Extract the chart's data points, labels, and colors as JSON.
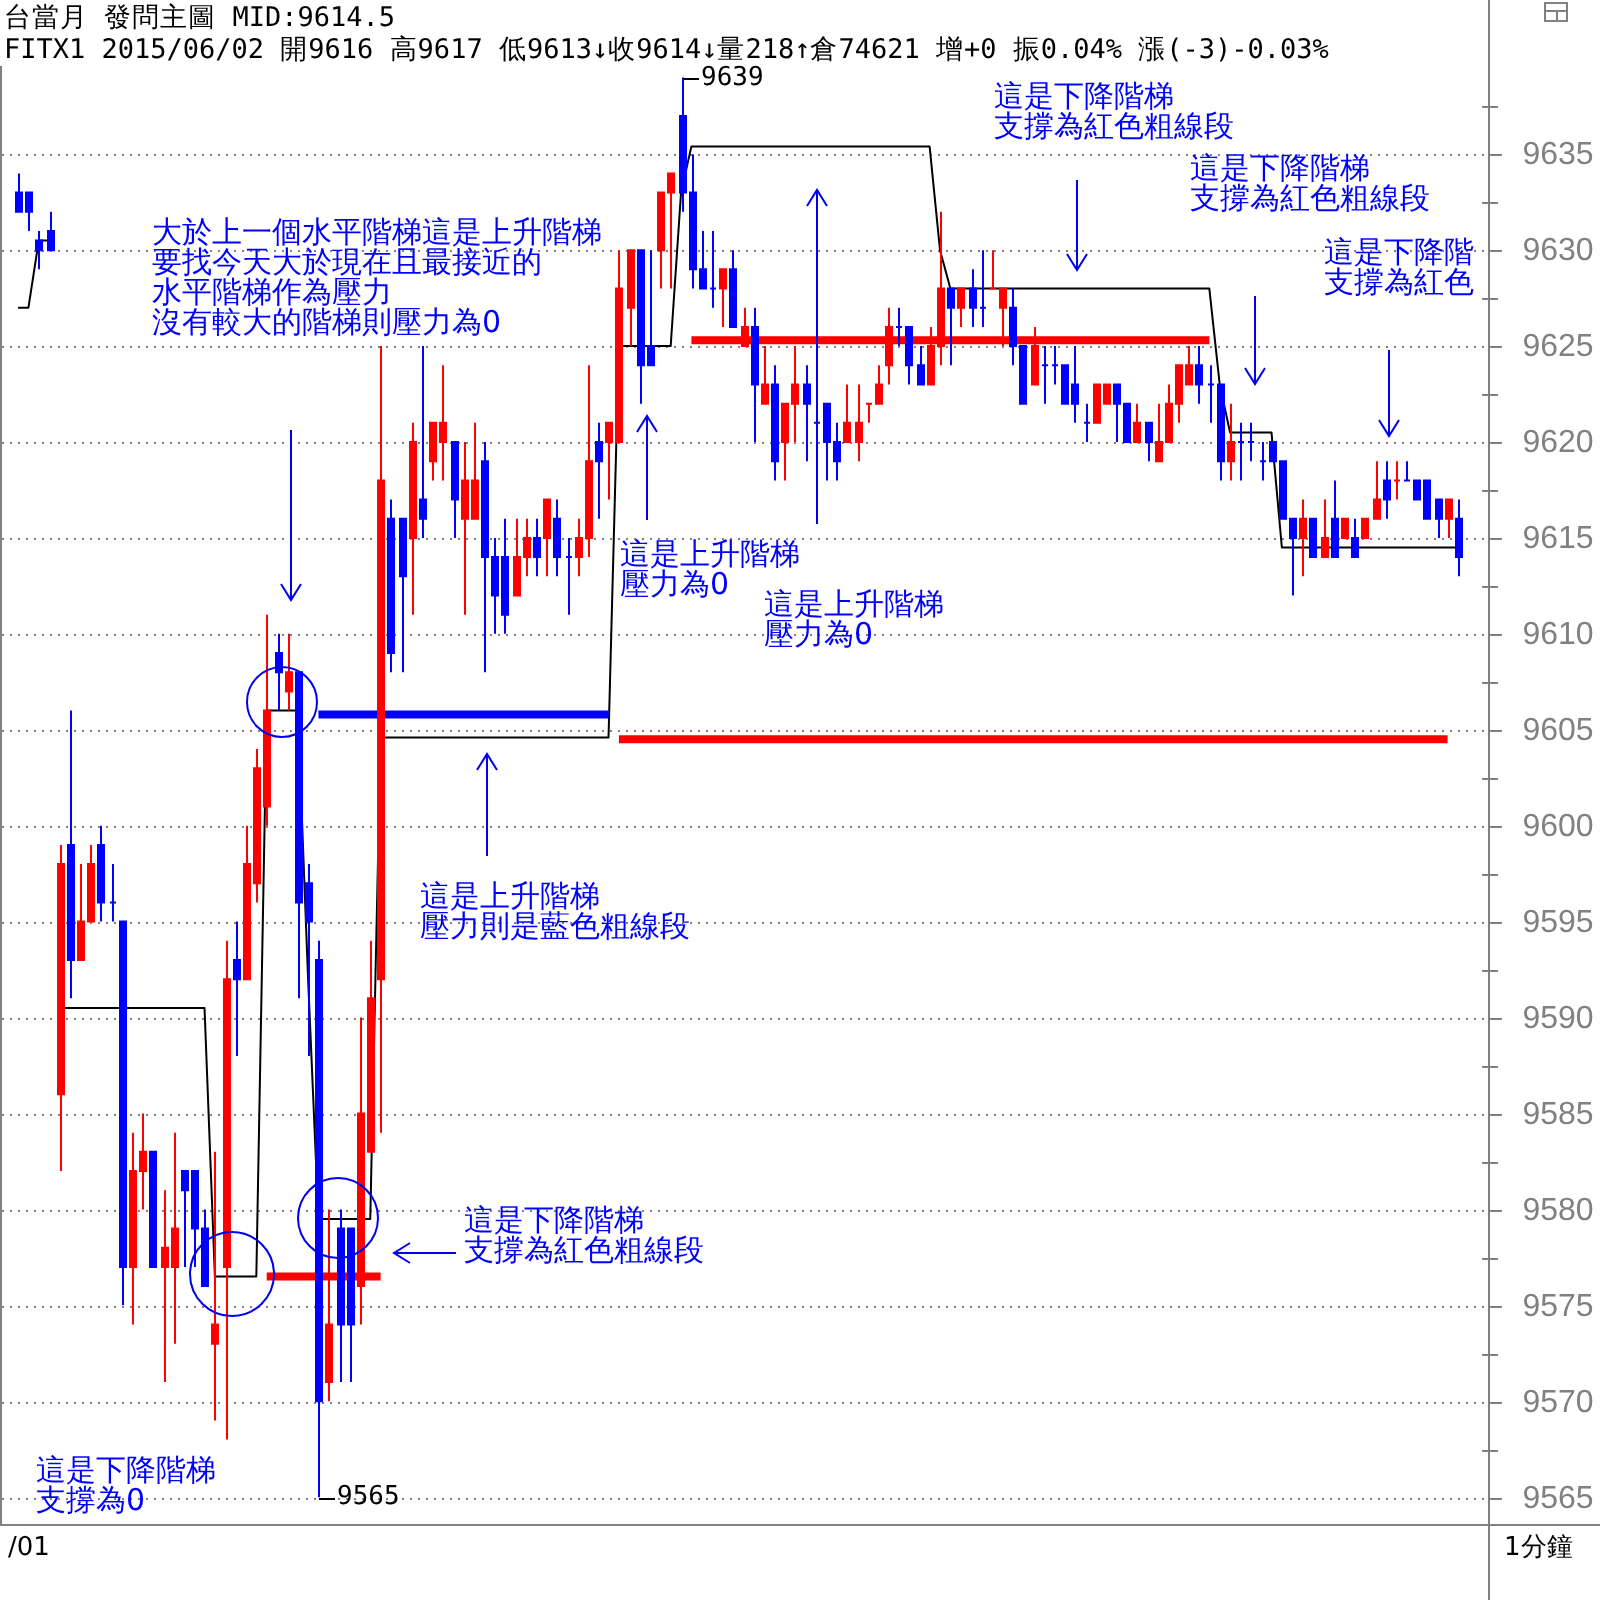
{
  "chart_data": {
    "type": "candlestick",
    "title": "台當月 發問主圖 MID:9614.5",
    "subtitle": "FITX1 2015/06/02 開9616 高9617 低9613↓收9614↓量218↑倉74621 增+0 振0.04% 漲(-3)-0.03%",
    "categories": [
      null,
      null,
      null,
      null,
      null,
      null,
      null,
      null,
      null,
      null,
      null,
      null,
      null,
      null,
      null,
      null,
      null,
      null,
      null,
      null,
      null,
      null,
      null,
      null,
      null,
      null,
      null,
      null,
      null,
      null,
      null,
      null,
      null,
      null,
      null,
      null,
      null,
      null,
      null,
      null,
      null,
      null,
      null,
      null,
      null,
      null,
      null,
      null,
      null,
      null,
      null,
      null,
      null,
      null,
      null,
      null,
      null,
      null,
      null,
      null,
      null,
      null,
      null,
      null,
      null,
      null,
      null,
      null,
      null,
      null,
      null,
      null,
      null,
      null,
      null,
      null,
      null,
      null,
      null,
      null,
      null,
      null,
      null,
      null,
      null,
      null,
      null,
      null,
      null,
      null,
      null,
      null,
      null,
      null,
      null,
      null,
      null,
      null,
      null,
      null,
      null,
      null,
      null,
      null,
      null,
      null,
      null,
      null,
      null,
      null,
      null,
      null,
      null,
      null,
      null,
      null,
      null,
      null,
      null,
      null,
      null,
      null,
      null,
      null,
      null,
      null,
      null,
      null,
      null,
      null,
      null,
      null,
      null,
      null,
      null,
      null,
      null,
      null,
      null,
      null
    ],
    "ohlc": [
      [
        9633,
        9634,
        9632,
        9632
      ],
      [
        9633,
        9633,
        9631,
        9632
      ],
      [
        9630.5,
        9631,
        9629,
        9630
      ],
      [
        9631,
        9632,
        9630,
        9630
      ],
      [
        9586,
        9599,
        9582,
        9598
      ],
      [
        9599,
        9606,
        9591,
        9593
      ],
      [
        9593,
        9598,
        9593,
        9595
      ],
      [
        9595,
        9599,
        9595,
        9598
      ],
      [
        9599,
        9600,
        9595,
        9596
      ],
      [
        9596,
        9598,
        9595,
        9596
      ],
      [
        9595,
        9595,
        9575,
        9577
      ],
      [
        9577,
        9584,
        9574,
        9582
      ],
      [
        9582,
        9585,
        9580,
        9583
      ],
      [
        9583,
        9583,
        9577,
        9577
      ],
      [
        9577,
        9581,
        9571,
        9578
      ],
      [
        9577,
        9584,
        9573,
        9579
      ],
      [
        9582,
        9582,
        9577,
        9581
      ],
      [
        9582,
        9582,
        9577,
        9579
      ],
      [
        9579,
        9580,
        9576,
        9576
      ],
      [
        9573,
        9583,
        9569,
        9574
      ],
      [
        9577,
        9594,
        9568,
        9592
      ],
      [
        9593,
        9595,
        9588,
        9592
      ],
      [
        9592,
        9600,
        9592,
        9598
      ],
      [
        9597,
        9604,
        9596,
        9603
      ],
      [
        9601,
        9611,
        9600,
        9606
      ],
      [
        9609,
        9610,
        9606,
        9608
      ],
      [
        9607,
        9610,
        9606,
        9608
      ],
      [
        9608,
        9608,
        9591,
        9596
      ],
      [
        9597,
        9598,
        9588,
        9595
      ],
      [
        9593,
        9594,
        9565,
        9570
      ],
      [
        9571,
        9580,
        9570,
        9574
      ],
      [
        9579,
        9580,
        9571,
        9574
      ],
      [
        9579,
        9579,
        9571,
        9574
      ],
      [
        9576,
        9590,
        9574,
        9585
      ],
      [
        9583,
        9594,
        9583,
        9591
      ],
      [
        9592,
        9625,
        9584,
        9618
      ],
      [
        9616,
        9617,
        9608,
        9609
      ],
      [
        9616,
        9616,
        9608,
        9613
      ],
      [
        9615,
        9621,
        9611,
        9620
      ],
      [
        9617,
        9625,
        9615,
        9616
      ],
      [
        9619,
        9621,
        9618,
        9621
      ],
      [
        9620,
        9624,
        9618,
        9621
      ],
      [
        9620,
        9620,
        9615,
        9617
      ],
      [
        9616,
        9620,
        9611,
        9618
      ],
      [
        9616,
        9621,
        9616,
        9618
      ],
      [
        9619,
        9620,
        9608,
        9614
      ],
      [
        9614,
        9615,
        9610,
        9612
      ],
      [
        9614,
        9616,
        9610,
        9611
      ],
      [
        9612,
        9616,
        9612,
        9614
      ],
      [
        9614,
        9616,
        9613,
        9615
      ],
      [
        9615,
        9616,
        9613,
        9614
      ],
      [
        9615,
        9617,
        9613,
        9617
      ],
      [
        9616,
        9617,
        9613,
        9614
      ],
      [
        9614,
        9615,
        9611,
        9614
      ],
      [
        9614,
        9616,
        9613,
        9615
      ],
      [
        9615,
        9624,
        9614,
        9619
      ],
      [
        9620,
        9621,
        9616,
        9619
      ],
      [
        9620,
        9621,
        9617,
        9621
      ],
      [
        9620,
        9630,
        9620,
        9628
      ],
      [
        9627,
        9630,
        9625,
        9630
      ],
      [
        9630,
        9630,
        9622,
        9624
      ],
      [
        9625,
        9630,
        9624,
        9624
      ],
      [
        9630,
        9633,
        9628,
        9633
      ],
      [
        9633,
        9634,
        9628,
        9634
      ],
      [
        9637,
        9639,
        9632,
        9633
      ],
      [
        9633,
        9635,
        9628,
        9629
      ],
      [
        9629,
        9631,
        9628,
        9628
      ],
      [
        9628,
        9631,
        9627,
        9628
      ],
      [
        9628,
        9629,
        9626,
        9629
      ],
      [
        9629,
        9630,
        9626,
        9626
      ],
      [
        9625,
        9627,
        9625,
        9626
      ],
      [
        9626,
        9627,
        9620,
        9623
      ],
      [
        9622,
        9625,
        9622,
        9623
      ],
      [
        9623,
        9624,
        9618,
        9619
      ],
      [
        9620,
        9622,
        9618,
        9622
      ],
      [
        9622,
        9625,
        9620,
        9623
      ],
      [
        9623,
        9624,
        9619,
        9622
      ],
      [
        9621,
        9621,
        9620,
        9621
      ],
      [
        9622,
        9622,
        9618,
        9620
      ],
      [
        9620,
        9621,
        9618,
        9619
      ],
      [
        9620,
        9623,
        9620,
        9621
      ],
      [
        9620,
        9623,
        9619,
        9621
      ],
      [
        9622,
        9622,
        9621,
        9622
      ],
      [
        9622,
        9624,
        9622,
        9623
      ],
      [
        9624,
        9627,
        9623,
        9626
      ],
      [
        9626,
        9627,
        9625,
        9626
      ],
      [
        9626,
        9626,
        9623,
        9624
      ],
      [
        9624,
        9625,
        9623,
        9623
      ],
      [
        9623,
        9626,
        9623,
        9625
      ],
      [
        9625,
        9632,
        9624,
        9628
      ],
      [
        9628,
        9628,
        9624,
        9627
      ],
      [
        9627,
        9628,
        9626,
        9628
      ],
      [
        9628,
        9629,
        9626,
        9627
      ],
      [
        9627,
        9630,
        9626,
        9627
      ],
      [
        9628,
        9630,
        9628,
        9628
      ],
      [
        9627,
        9628,
        9625,
        9628
      ],
      [
        9627,
        9628,
        9624,
        9625
      ],
      [
        9625,
        9625,
        9622,
        9622
      ],
      [
        9623,
        9626,
        9623,
        9625
      ],
      [
        9624,
        9625,
        9622,
        9624
      ],
      [
        9624,
        9625,
        9623,
        9624
      ],
      [
        9624,
        9624,
        9622,
        9622
      ],
      [
        9623,
        9625,
        9621,
        9622
      ],
      [
        9621,
        9622,
        9620,
        9621
      ],
      [
        9621,
        9623,
        9621,
        9623
      ],
      [
        9622,
        9623,
        9622,
        9623
      ],
      [
        9623,
        9623,
        9620,
        9622
      ],
      [
        9622,
        9622,
        9620,
        9620
      ],
      [
        9620,
        9622,
        9620,
        9621
      ],
      [
        9621,
        9621,
        9619,
        9620
      ],
      [
        9619,
        9622,
        9619,
        9620
      ],
      [
        9620,
        9623,
        9620,
        9622
      ],
      [
        9622,
        9624,
        9621,
        9624
      ],
      [
        9623,
        9625,
        9623,
        9624
      ],
      [
        9624,
        9625,
        9622,
        9623
      ],
      [
        9623,
        9624,
        9621,
        9623
      ],
      [
        9623,
        9623,
        9618,
        9619
      ],
      [
        9619,
        9622,
        9618,
        9620
      ],
      [
        9620,
        9621,
        9618,
        9620
      ],
      [
        9620,
        9621,
        9619,
        9620
      ],
      [
        9619,
        9620,
        9618,
        9619
      ],
      [
        9620,
        9620,
        9619,
        9619
      ],
      [
        9619,
        9619,
        9616,
        9616
      ],
      [
        9616,
        9616,
        9612,
        9615
      ],
      [
        9615,
        9617,
        9613,
        9616
      ],
      [
        9616,
        9616,
        9614,
        9614
      ],
      [
        9614,
        9617,
        9614,
        9615
      ],
      [
        9616,
        9618,
        9614,
        9614
      ],
      [
        9615,
        9616,
        9615,
        9616
      ],
      [
        9615,
        9616,
        9614,
        9614
      ],
      [
        9615,
        9616,
        9615,
        9616
      ],
      [
        9616,
        9619,
        9616,
        9617
      ],
      [
        9618,
        9619,
        9616,
        9617
      ],
      [
        9618,
        9619,
        9617,
        9618
      ],
      [
        9618,
        9619,
        9618,
        9618
      ],
      [
        9618,
        9618,
        9617,
        9617
      ],
      [
        9618,
        9618,
        9616,
        9616
      ],
      [
        9617,
        9617,
        9615,
        9616
      ],
      [
        9616,
        9617,
        9615,
        9617
      ],
      [
        9616,
        9617,
        9613,
        9614
      ]
    ],
    "colors": [
      "#0000ff",
      "#0000ff",
      "#0000ff",
      "#0000ff",
      "#ff0000",
      "#0000ff",
      "#ff0000",
      "#ff0000",
      "#0000ff",
      "#0000ff",
      "#0000ff",
      "#ff0000",
      "#ff0000",
      "#0000ff",
      "#ff0000",
      "#ff0000",
      "#0000ff",
      "#0000ff",
      "#0000ff",
      "#ff0000",
      "#ff0000",
      "#0000ff",
      "#ff0000",
      "#ff0000",
      "#ff0000",
      "#0000ff",
      "#ff0000",
      "#0000ff",
      "#0000ff",
      "#0000ff",
      "#ff0000",
      "#0000ff",
      "#0000ff",
      "#ff0000",
      "#ff0000",
      "#ff0000",
      "#0000ff",
      "#0000ff",
      "#ff0000",
      "#0000ff",
      "#ff0000",
      "#ff0000",
      "#0000ff",
      "#ff0000",
      "#ff0000",
      "#0000ff",
      "#0000ff",
      "#0000ff",
      "#ff0000",
      "#ff0000",
      "#0000ff",
      "#ff0000",
      "#0000ff",
      "#0000ff",
      "#ff0000",
      "#ff0000",
      "#0000ff",
      "#ff0000",
      "#ff0000",
      "#ff0000",
      "#0000ff",
      "#0000ff",
      "#ff0000",
      "#ff0000",
      "#0000ff",
      "#0000ff",
      "#0000ff",
      "#0000ff",
      "#ff0000",
      "#0000ff",
      "#ff0000",
      "#0000ff",
      "#ff0000",
      "#0000ff",
      "#ff0000",
      "#ff0000",
      "#0000ff",
      "#0000ff",
      "#0000ff",
      "#0000ff",
      "#ff0000",
      "#ff0000",
      "#ff0000",
      "#ff0000",
      "#ff0000",
      "#0000ff",
      "#0000ff",
      "#0000ff",
      "#ff0000",
      "#ff0000",
      "#0000ff",
      "#ff0000",
      "#0000ff",
      "#0000ff",
      "#ff0000",
      "#ff0000",
      "#0000ff",
      "#0000ff",
      "#ff0000",
      "#0000ff",
      "#0000ff",
      "#0000ff",
      "#0000ff",
      "#0000ff",
      "#ff0000",
      "#ff0000",
      "#0000ff",
      "#0000ff",
      "#ff0000",
      "#0000ff",
      "#ff0000",
      "#ff0000",
      "#ff0000",
      "#ff0000",
      "#0000ff",
      "#0000ff",
      "#0000ff",
      "#ff0000",
      "#0000ff",
      "#0000ff",
      "#0000ff",
      "#0000ff",
      "#0000ff",
      "#0000ff",
      "#ff0000",
      "#0000ff",
      "#ff0000",
      "#0000ff",
      "#ff0000",
      "#0000ff",
      "#ff0000",
      "#ff0000",
      "#0000ff",
      "#ff0000",
      "#0000ff",
      "#0000ff",
      "#0000ff",
      "#0000ff",
      "#ff0000",
      "#0000ff"
    ],
    "series": [
      {
        "type": "line",
        "color": "#000000",
        "values": [
          9627,
          9627,
          9630.5,
          9630.5,
          null,
          null,
          null,
          null,
          null,
          null,
          null,
          null,
          null,
          null,
          null,
          null,
          null,
          null,
          null,
          null,
          null,
          null,
          null,
          null,
          null,
          null,
          null,
          null,
          null,
          null,
          null,
          null,
          null,
          null,
          null,
          null,
          null,
          null,
          null,
          null,
          null,
          null,
          null,
          null,
          null,
          null,
          null,
          null,
          null,
          null,
          null,
          null,
          null,
          null,
          null,
          null,
          null,
          null,
          null,
          null,
          null,
          null,
          null,
          null,
          null,
          null,
          null,
          null,
          null,
          null,
          null,
          null,
          null,
          null,
          null,
          null,
          null,
          null,
          null,
          null,
          null,
          null,
          null,
          null,
          null,
          null,
          null,
          null,
          null,
          null,
          null,
          null,
          null,
          null,
          null,
          null,
          null,
          null,
          null,
          null,
          null,
          null,
          null,
          null,
          null,
          null,
          null,
          null,
          null,
          null,
          null,
          null,
          null,
          null,
          null,
          null,
          null,
          null,
          null,
          null,
          null,
          null,
          null,
          null,
          null,
          null,
          null,
          null,
          null,
          null,
          null,
          null,
          null,
          null,
          null,
          null,
          null,
          null,
          null,
          null
        ]
      },
      {
        "type": "line",
        "color": "#000000",
        "values": [
          null,
          null,
          null,
          null,
          9590.5,
          9590.5,
          9590.5,
          9590.5,
          9590.5,
          9590.5,
          9590.5,
          9590.5,
          9590.5,
          9590.5,
          9590.5,
          9590.5,
          9590.5,
          9590.5,
          9590.5,
          9576.5,
          9576.5,
          9576.5,
          9576.5,
          9576.5,
          9606,
          9606,
          9606,
          9606,
          9592,
          9579.5,
          9579.5,
          9579.5,
          9579.5,
          9579.5,
          9579.5,
          9604.6,
          9604.6,
          9604.6,
          9604.6,
          9604.6,
          9604.6,
          9604.6,
          9604.6,
          9604.6,
          9604.6,
          9604.6,
          9604.6,
          9604.6,
          9604.6,
          9604.6,
          9604.6,
          9604.6,
          9604.6,
          9604.6,
          9604.6,
          9604.6,
          9604.6,
          9604.6,
          9625,
          9625,
          9625,
          9625,
          9625,
          9625,
          9633,
          9635.4,
          9635.4,
          9635.4,
          9635.4,
          9635.4,
          9635.4,
          9635.4,
          9635.4,
          9635.4,
          9635.4,
          9635.4,
          9635.4,
          9635.4,
          9635.4,
          9635.4,
          9635.4,
          9635.4,
          9635.4,
          9635.4,
          9635.4,
          9635.4,
          9635.4,
          9635.4,
          9635.4,
          9630,
          9628,
          9628,
          9628,
          9628,
          9628,
          9628,
          9628,
          9628,
          9628,
          9628,
          9628,
          9628,
          9628,
          9628,
          9628,
          9628,
          9628,
          9628,
          9628,
          9628,
          9628,
          9628,
          9628,
          9628,
          9628,
          9628,
          9623,
          9620.5,
          9620.5,
          9620.5,
          9620.5,
          9620.5,
          9614.5,
          9614.5,
          9614.5,
          9614.5,
          9614.5,
          9614.5,
          9614.5,
          9614.5,
          9614.5,
          9614.5,
          9614.5,
          9614.5,
          9614.5,
          9614.5,
          9614.5,
          9614.5,
          9614.5,
          9614.5
        ]
      },
      {
        "type": "line",
        "color": "#ff0000",
        "values": [
          null,
          null,
          null,
          null,
          null,
          null,
          null,
          null,
          null,
          null,
          null,
          null,
          null,
          null,
          null,
          null,
          null,
          null,
          null,
          null,
          null,
          null,
          null,
          null,
          9576.5,
          9576.5,
          9576.5,
          9576.5,
          9576.5,
          9576.5,
          9576.5,
          9576.5,
          9576.5,
          9576.5,
          9576.5,
          9576.5,
          null,
          null,
          null,
          null,
          null,
          null,
          null,
          null,
          null,
          null,
          null,
          null,
          null,
          null,
          null,
          null,
          null,
          null,
          null,
          null,
          null,
          null,
          null,
          null,
          null,
          null,
          null,
          null,
          null,
          null,
          null,
          null,
          null,
          null,
          null,
          null,
          null,
          null,
          null,
          null,
          null,
          null,
          null,
          null,
          null,
          null,
          null,
          null,
          null,
          null,
          null,
          null,
          null,
          null,
          null,
          null,
          null,
          null,
          null,
          null,
          null,
          null,
          null,
          null,
          null,
          null,
          null,
          null,
          null,
          null,
          null,
          null,
          null,
          null,
          null,
          null,
          null,
          null,
          null,
          null,
          null,
          null,
          null,
          null,
          null,
          null,
          null,
          null,
          null,
          null,
          null,
          null,
          null,
          null,
          null,
          null,
          null,
          null,
          null,
          null,
          null,
          null,
          null,
          null
        ]
      },
      {
        "type": "line",
        "color": "#0000ff",
        "values": [
          null,
          null,
          null,
          null,
          null,
          null,
          null,
          null,
          null,
          null,
          null,
          null,
          null,
          null,
          null,
          null,
          null,
          null,
          null,
          null,
          null,
          null,
          null,
          null,
          null,
          null,
          null,
          null,
          null,
          9605.8,
          9605.8,
          9605.8,
          9605.8,
          9605.8,
          9605.8,
          9605.8,
          9605.8,
          9605.8,
          9605.8,
          9605.8,
          9605.8,
          9605.8,
          9605.8,
          9605.8,
          9605.8,
          9605.8,
          9605.8,
          9605.8,
          9605.8,
          9605.8,
          9605.8,
          9605.8,
          9605.8,
          9605.8,
          9605.8,
          9605.8,
          9605.8,
          9605.8,
          null,
          null,
          null,
          null,
          null,
          null,
          null,
          null,
          null,
          null,
          null,
          null,
          null,
          null,
          null,
          null,
          null,
          null,
          null,
          null,
          null,
          null,
          null,
          null,
          null,
          null,
          null,
          null,
          null,
          null,
          null,
          null,
          null,
          null,
          null,
          null,
          null,
          null,
          null,
          null,
          null,
          null,
          null,
          null,
          null,
          null,
          null,
          null,
          null,
          null,
          null,
          null,
          null,
          null,
          null,
          null,
          null,
          null,
          null,
          null,
          null,
          null,
          null,
          null,
          null,
          null,
          null,
          null,
          null,
          null,
          null,
          null,
          null,
          null,
          null,
          null,
          null,
          null,
          null,
          null,
          null,
          null
        ]
      },
      {
        "type": "line",
        "color": "#ff0000",
        "values": [
          null,
          null,
          null,
          null,
          null,
          null,
          null,
          null,
          null,
          null,
          null,
          null,
          null,
          null,
          null,
          null,
          null,
          null,
          null,
          null,
          null,
          null,
          null,
          null,
          null,
          null,
          null,
          null,
          null,
          null,
          null,
          null,
          null,
          null,
          null,
          null,
          null,
          null,
          null,
          null,
          null,
          null,
          null,
          null,
          null,
          null,
          null,
          null,
          null,
          null,
          null,
          null,
          null,
          null,
          null,
          null,
          null,
          null,
          null,
          null,
          null,
          null,
          null,
          null,
          null,
          9625.3,
          9625.3,
          9625.3,
          9625.3,
          9625.3,
          9625.3,
          9625.3,
          9625.3,
          9625.3,
          9625.3,
          9625.3,
          9625.3,
          9625.3,
          9625.3,
          9625.3,
          9625.3,
          9625.3,
          9625.3,
          9625.3,
          9625.3,
          9625.3,
          9625.3,
          9625.3,
          9625.3,
          9625.3,
          9625.3,
          9625.3,
          9625.3,
          9625.3,
          9625.3,
          9625.3,
          9625.3,
          9625.3,
          9625.3,
          9625.3,
          9625.3,
          9625.3,
          9625.3,
          9625.3,
          9625.3,
          9625.3,
          9625.3,
          9625.3,
          9625.3,
          9625.3,
          9625.3,
          9625.3,
          9625.3,
          9625.3,
          9625.3,
          9625.3,
          null,
          null,
          null,
          null,
          null,
          null,
          null,
          null,
          null,
          null,
          null,
          null,
          null,
          null,
          null,
          null,
          null,
          null,
          null,
          null,
          null,
          null,
          null,
          null
        ]
      },
      {
        "type": "line",
        "color": "#ff0000",
        "values": [
          null,
          null,
          null,
          null,
          null,
          null,
          null,
          null,
          null,
          null,
          null,
          null,
          null,
          null,
          null,
          null,
          null,
          null,
          null,
          null,
          null,
          null,
          null,
          null,
          null,
          null,
          null,
          null,
          null,
          null,
          null,
          null,
          null,
          null,
          null,
          null,
          null,
          null,
          null,
          null,
          null,
          null,
          null,
          null,
          null,
          null,
          null,
          null,
          null,
          null,
          null,
          null,
          null,
          null,
          null,
          null,
          null,
          null,
          9604.5,
          9604.5,
          9604.5,
          9604.5,
          9604.5,
          9604.5,
          9604.5,
          9604.5,
          9604.5,
          9604.5,
          9604.5,
          9604.5,
          9604.5,
          9604.5,
          9604.5,
          9604.5,
          9604.5,
          9604.5,
          9604.5,
          9604.5,
          9604.5,
          9604.5,
          9604.5,
          9604.5,
          9604.5,
          9604.5,
          9604.5,
          9604.5,
          9604.5,
          9604.5,
          9604.5,
          9604.5,
          9604.5,
          9604.5,
          9604.5,
          9604.5,
          9604.5,
          9604.5,
          9604.5,
          9604.5,
          9604.5,
          9604.5,
          9604.5,
          9604.5,
          9604.5,
          9604.5,
          9604.5,
          9604.5,
          9604.5,
          9604.5,
          9604.5,
          9604.5,
          9604.5,
          9604.5,
          9604.5,
          9604.5,
          9604.5,
          9604.5,
          9604.5,
          9604.5,
          9604.5,
          9604.5,
          9604.5,
          9604.5,
          9604.5,
          9604.5,
          9604.5,
          9604.5,
          9604.5,
          9604.5,
          9604.5,
          9604.5,
          9604.5,
          9604.5,
          9604.5,
          9604.5,
          9604.5,
          9604.5,
          9604.5,
          9604.5,
          9604.5,
          null
        ]
      }
    ],
    "ylim": [
      9563.6,
      9639.6
    ],
    "yticks": [
      9565,
      {
        "value": 9567.5,
        "label": null
      },
      9570,
      {
        "value": 9572.5,
        "label": null
      },
      9575,
      {
        "value": 9577.5,
        "label": null
      },
      9580,
      {
        "value": 9582.5,
        "label": null
      },
      9585,
      {
        "value": 9587.5,
        "label": null
      },
      9590,
      {
        "value": 9592.5,
        "label": null
      },
      9595,
      {
        "value": 9597.5,
        "label": null
      },
      9600,
      {
        "value": 9602.5,
        "label": null
      },
      9605,
      {
        "value": 9607.5,
        "label": null
      },
      9610,
      {
        "value": 9612.5,
        "label": null
      },
      9615,
      {
        "value": 9617.5,
        "label": null
      },
      9620,
      {
        "value": 9622.5,
        "label": null
      },
      9625,
      {
        "value": 9627.5,
        "label": null
      },
      9630,
      {
        "value": 9632.5,
        "label": null
      },
      9635,
      {
        "value": 9637.5,
        "label": null
      }
    ],
    "grid": "y",
    "tick_labels": "y",
    "annotations": [
      "9639",
      "大於上一個水平階梯這是上升階梯",
      "要找今天大於現在且最接近的",
      "水平階梯作為壓力",
      "沒有較大的階梯則壓力為0",
      "這是上升階梯",
      "壓力為0",
      "這是上升階梯",
      "壓力為0",
      "這是上升階梯",
      "壓力則是藍色粗線段",
      "這是下降階梯",
      "支撐為紅色粗線段",
      "這是下降階梯",
      "支撐為0",
      "這是下降階梯",
      "支撐為紅色粗線段",
      "這是下降階梯",
      "支撐為紅色粗線段",
      "這是下降階",
      "支撐為紅色",
      "9565",
      "/01",
      "1分鐘"
    ]
  }
}
